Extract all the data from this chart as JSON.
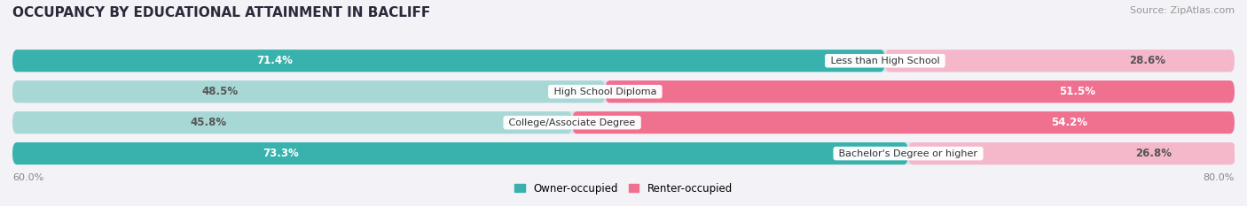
{
  "title": "OCCUPANCY BY EDUCATIONAL ATTAINMENT IN BACLIFF",
  "source": "Source: ZipAtlas.com",
  "categories": [
    "Less than High School",
    "High School Diploma",
    "College/Associate Degree",
    "Bachelor's Degree or higher"
  ],
  "owner_pct": [
    71.4,
    48.5,
    45.8,
    73.3
  ],
  "renter_pct": [
    28.6,
    51.5,
    54.2,
    26.8
  ],
  "owner_color": "#39b2ae",
  "owner_color_light": "#a8d8d6",
  "renter_color": "#f07090",
  "renter_color_light": "#f5b8cb",
  "owner_label": "Owner-occupied",
  "renter_label": "Renter-occupied",
  "x_left_label": "60.0%",
  "x_right_label": "80.0%",
  "title_fontsize": 11,
  "label_fontsize": 8.5,
  "cat_fontsize": 8,
  "tick_fontsize": 8,
  "source_fontsize": 8,
  "background_color": "#f2f2f7",
  "bar_background": "#e2e2ea",
  "bar_row_bg": "#e9e9f0"
}
